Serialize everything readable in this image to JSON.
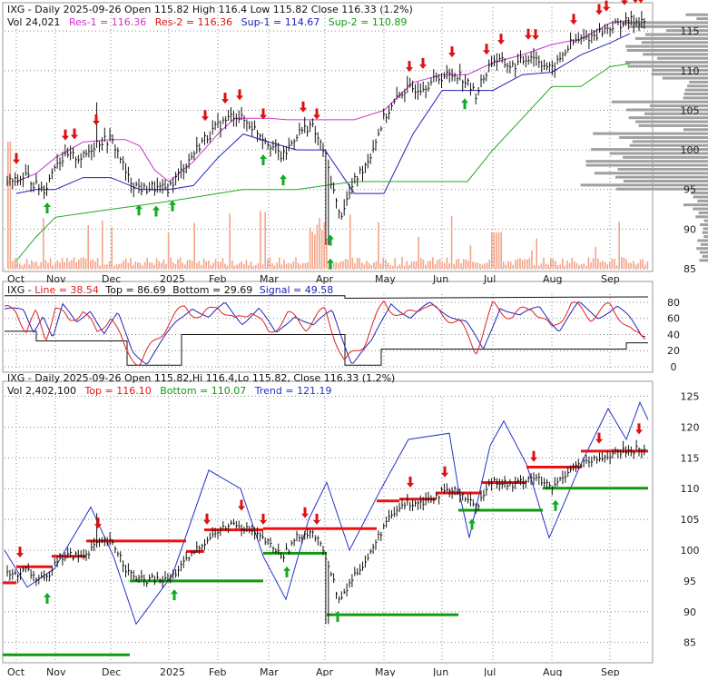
{
  "colors": {
    "price_bar": "#111111",
    "res_line": "#cc33cc",
    "sup1_line": "#2222bb",
    "sup2_line": "#22aa22",
    "volume_bar": "#f4a58a",
    "profile": "#a0a0a0",
    "signal_down": "#dd1111",
    "signal_up": "#11aa22",
    "osc_line": "#dd2222",
    "osc_signal": "#2222bb",
    "osc_bound": "#111111",
    "trend_line": "#2233cc",
    "level_top": "#ee1111",
    "level_bottom": "#119911"
  },
  "panels": {
    "top": {
      "line1": "IXG - Daily 2025-09-26 Open 115.82  High 116.4  Low 115.82  Close 116.33 (1.2%)",
      "line2_vol": "Vol 24,021",
      "line2_res1": "Res-1 = 116.36",
      "line2_res2": "Res-2 = 116.36",
      "line2_sup1": "Sup-1 = 114.67",
      "line2_sup2": "Sup-2 = 110.89"
    },
    "middle": {
      "name": "IXG - ",
      "line": "Line = 38.54",
      "top": "Top = 86.69",
      "bottom": "Bottom = 29.69",
      "signal": "Signal = 49.58"
    },
    "bottom": {
      "line1": "IXG - Daily 2025-09-26 Open 115.82,Hi 116.4,Lo 115.82, Close 116.33 (1.2%)",
      "line2_vol": "Vol 2,402,100",
      "line2_top": "Top = 116.10",
      "line2_bottom": "Bottom = 110.07",
      "line2_trend": "Trend = 121.19"
    }
  },
  "x_axis": {
    "months": [
      "Oct",
      "Nov",
      "Dec",
      "2025",
      "Feb",
      "Mar",
      "Apr",
      "May",
      "Jun",
      "Jul",
      "Aug",
      "Sep"
    ]
  },
  "chart_data": [
    {
      "type": "candlestick",
      "title": "IXG - Daily 2025-09-26",
      "price_ylim": [
        85,
        118
      ],
      "price_ticks": [
        85,
        90,
        95,
        100,
        105,
        110,
        115
      ],
      "close_path": [
        [
          "Oct",
          96.0
        ],
        [
          "",
          96.8
        ],
        [
          "",
          95.5
        ],
        [
          "",
          95.0
        ],
        [
          "Nov",
          98.5
        ],
        [
          "",
          99.2
        ],
        [
          "",
          99.0
        ],
        [
          "",
          101.0
        ],
        [
          "Dec",
          101.3
        ],
        [
          "",
          99.5
        ],
        [
          "",
          96.5
        ],
        [
          "",
          95.5
        ],
        [
          "",
          95.0
        ],
        [
          "",
          95.3
        ],
        [
          "",
          95.0
        ],
        [
          "2025",
          95.2
        ],
        [
          "",
          98.0
        ],
        [
          "",
          101.0
        ],
        [
          "Feb",
          103.0
        ],
        [
          "",
          104.5
        ],
        [
          "",
          103.0
        ],
        [
          "Mar",
          101.0
        ],
        [
          "",
          99.0
        ],
        [
          "",
          102.0
        ],
        [
          "",
          103.2
        ],
        [
          "Apr",
          99.5
        ],
        [
          "",
          91.5
        ],
        [
          "",
          96.0
        ],
        [
          "",
          99.0
        ],
        [
          "May",
          104.0
        ],
        [
          "",
          107.5
        ],
        [
          "",
          108.0
        ],
        [
          "Jun",
          109.3
        ],
        [
          "",
          109.6
        ],
        [
          "",
          107.0
        ],
        [
          "Jul",
          111.5
        ],
        [
          "",
          110.5
        ],
        [
          "",
          112.0
        ],
        [
          "Aug",
          110.0
        ],
        [
          "",
          113.5
        ],
        [
          "",
          114.3
        ],
        [
          "Sep",
          115.5
        ],
        [
          "",
          116.0
        ],
        [
          "",
          116.33
        ]
      ],
      "res_path": [
        [
          "Oct",
          96.0
        ],
        [
          "",
          97.0
        ],
        [
          "Nov",
          99.0
        ],
        [
          "",
          101.0
        ],
        [
          "Dec",
          101.3
        ],
        [
          "",
          101.3
        ],
        [
          "",
          100.5
        ],
        [
          "",
          97.5
        ],
        [
          "2025",
          96.0
        ],
        [
          "",
          98.5
        ],
        [
          "Feb",
          102.0
        ],
        [
          "",
          104.0
        ],
        [
          "",
          104.0
        ],
        [
          "Mar",
          104.0
        ],
        [
          "",
          103.8
        ],
        [
          "",
          103.8
        ],
        [
          "Apr",
          103.8
        ],
        [
          "",
          103.8
        ],
        [
          "May",
          105.0
        ],
        [
          "",
          108.5
        ],
        [
          "Jun",
          109.5
        ],
        [
          "",
          109.5
        ],
        [
          "Jul",
          111.0
        ],
        [
          "",
          112.0
        ],
        [
          "Aug",
          113.3
        ],
        [
          "",
          114.0
        ],
        [
          "Sep",
          116.0
        ],
        [
          "",
          116.36
        ]
      ],
      "sup1_path": [
        [
          "Oct",
          94.5
        ],
        [
          "",
          95.0
        ],
        [
          "Nov",
          95.0
        ],
        [
          "",
          96.5
        ],
        [
          "Dec",
          96.5
        ],
        [
          "",
          95.0
        ],
        [
          "2025",
          95.0
        ],
        [
          "",
          95.5
        ],
        [
          "Feb",
          99.0
        ],
        [
          "",
          102.0
        ],
        [
          "Mar",
          101.0
        ],
        [
          "",
          100.0
        ],
        [
          "Apr",
          100.0
        ],
        [
          "",
          94.5
        ],
        [
          "May",
          94.5
        ],
        [
          "",
          102.0
        ],
        [
          "Jun",
          107.5
        ],
        [
          "",
          107.5
        ],
        [
          "Jul",
          107.5
        ],
        [
          "",
          109.5
        ],
        [
          "Aug",
          109.8
        ],
        [
          "",
          112.0
        ],
        [
          "Sep",
          113.5
        ],
        [
          "",
          114.67
        ]
      ],
      "sup2_path": [
        [
          "Oct",
          86.0
        ],
        [
          "",
          89.0
        ],
        [
          "Nov",
          91.5
        ],
        [
          "",
          92.0
        ],
        [
          "Dec",
          92.5
        ],
        [
          "",
          93.0
        ],
        [
          "2025",
          93.5
        ],
        [
          "",
          94.0
        ],
        [
          "Feb",
          94.5
        ],
        [
          "",
          95.0
        ],
        [
          "Mar",
          95.0
        ],
        [
          "",
          95.0
        ],
        [
          "Apr",
          95.5
        ],
        [
          "",
          96.0
        ],
        [
          "May",
          96.0
        ],
        [
          "",
          96.0
        ],
        [
          "Jun",
          96.0
        ],
        [
          "",
          96.0
        ],
        [
          "Jul",
          100.0
        ],
        [
          "",
          104.0
        ],
        [
          "Aug",
          108.0
        ],
        [
          "",
          108.0
        ],
        [
          "Sep",
          110.5
        ],
        [
          "",
          110.89
        ]
      ],
      "down_signals": [
        "Oct",
        "Nov",
        "Nov",
        "Dec",
        "Feb",
        "Feb",
        "Feb",
        "Mar",
        "Mar",
        "Apr",
        "May",
        "May",
        "Jun",
        "Jun",
        "Jul",
        "Jul",
        "Jul",
        "Aug",
        "Aug",
        "Aug",
        "Sep",
        "Sep",
        "Sep"
      ],
      "up_signals": [
        "Oct",
        "Dec",
        "Dec",
        "2025",
        "Mar",
        "Mar",
        "Apr",
        "Apr",
        "Jun"
      ]
    },
    {
      "type": "line",
      "title": "IXG - Line",
      "ylim": [
        0,
        90
      ],
      "ticks": [
        0,
        20,
        40,
        60,
        80
      ],
      "top_value": 86.69,
      "bottom_value": 29.69,
      "line_value": 38.54,
      "signal_value": 49.58,
      "line_path": [
        [
          "Oct",
          70
        ],
        [
          "",
          45
        ],
        [
          "",
          65
        ],
        [
          "",
          35
        ],
        [
          "Nov",
          75
        ],
        [
          "",
          55
        ],
        [
          "",
          72
        ],
        [
          "",
          40
        ],
        [
          "Dec",
          65
        ],
        [
          "",
          20
        ],
        [
          "",
          5
        ],
        [
          "",
          30
        ],
        [
          "2025",
          55
        ],
        [
          "",
          75
        ],
        [
          "",
          60
        ],
        [
          "Feb",
          78
        ],
        [
          "",
          55
        ],
        [
          "",
          72
        ],
        [
          "Mar",
          40
        ],
        [
          "",
          65
        ],
        [
          "",
          50
        ],
        [
          "Apr",
          70
        ],
        [
          "",
          5
        ],
        [
          "",
          30
        ],
        [
          "May",
          80
        ],
        [
          "",
          60
        ],
        [
          "",
          78
        ],
        [
          "Jun",
          65
        ],
        [
          "",
          55
        ],
        [
          "",
          20
        ],
        [
          "Jul",
          75
        ],
        [
          "",
          62
        ],
        [
          "",
          75
        ],
        [
          "Aug",
          45
        ],
        [
          "",
          78
        ],
        [
          "",
          62
        ],
        [
          "Sep",
          75
        ],
        [
          "",
          60
        ],
        [
          "",
          38.54
        ]
      ]
    },
    {
      "type": "candlestick",
      "title": "IXG - Daily 2025-09-26",
      "price_ylim": [
        82,
        127
      ],
      "price_ticks": [
        85,
        90,
        95,
        100,
        105,
        110,
        115,
        120,
        125
      ],
      "top_value": 116.1,
      "bottom_value": 110.07,
      "trend_value": 121.19
    }
  ]
}
